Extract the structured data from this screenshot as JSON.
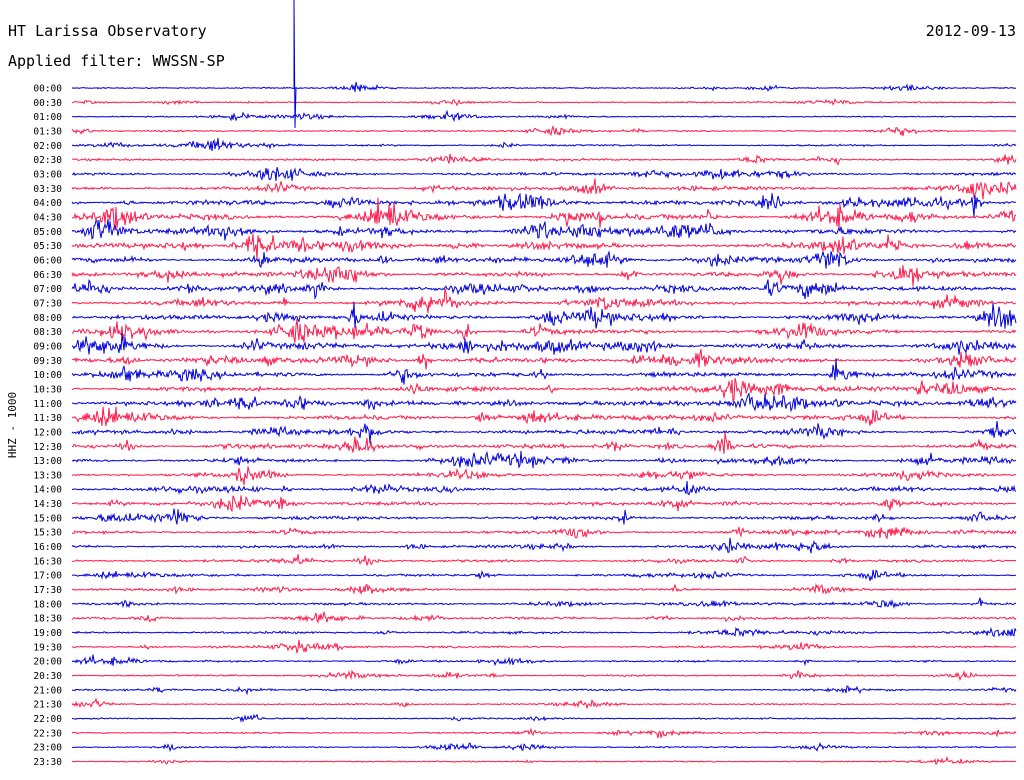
{
  "header": {
    "station": "HT Larissa Observatory",
    "date": "2012-09-13",
    "filter": "Applied filter: WWSSN-SP"
  },
  "chart_data": {
    "type": "line",
    "ylabel": "HHZ - 1000",
    "rows": [
      "00:00",
      "00:30",
      "01:00",
      "01:30",
      "02:00",
      "02:30",
      "03:00",
      "03:30",
      "04:00",
      "04:30",
      "05:00",
      "05:30",
      "06:00",
      "06:30",
      "07:00",
      "07:30",
      "08:00",
      "08:30",
      "09:00",
      "09:30",
      "10:00",
      "10:30",
      "11:00",
      "11:30",
      "12:00",
      "12:30",
      "13:00",
      "13:30",
      "14:00",
      "14:30",
      "15:00",
      "15:30",
      "16:00",
      "16:30",
      "17:00",
      "17:30",
      "18:00",
      "18:30",
      "19:00",
      "19:30",
      "20:00",
      "20:30",
      "21:00",
      "21:30",
      "22:00",
      "22:30",
      "23:00",
      "23:30"
    ],
    "activity": [
      0.1,
      0.15,
      0.1,
      0.15,
      0.2,
      0.25,
      0.4,
      0.6,
      0.8,
      0.9,
      0.85,
      0.8,
      0.75,
      0.7,
      0.7,
      0.75,
      0.8,
      0.85,
      0.8,
      0.8,
      0.75,
      0.75,
      0.75,
      0.7,
      0.65,
      0.6,
      0.55,
      0.55,
      0.55,
      0.5,
      0.5,
      0.45,
      0.4,
      0.35,
      0.35,
      0.3,
      0.3,
      0.3,
      0.3,
      0.25,
      0.2,
      0.2,
      0.2,
      0.15,
      0.15,
      0.15,
      0.15,
      0.1
    ],
    "colors": {
      "odd_row": "#0000dd",
      "even_row": "#ff1a4a"
    }
  }
}
